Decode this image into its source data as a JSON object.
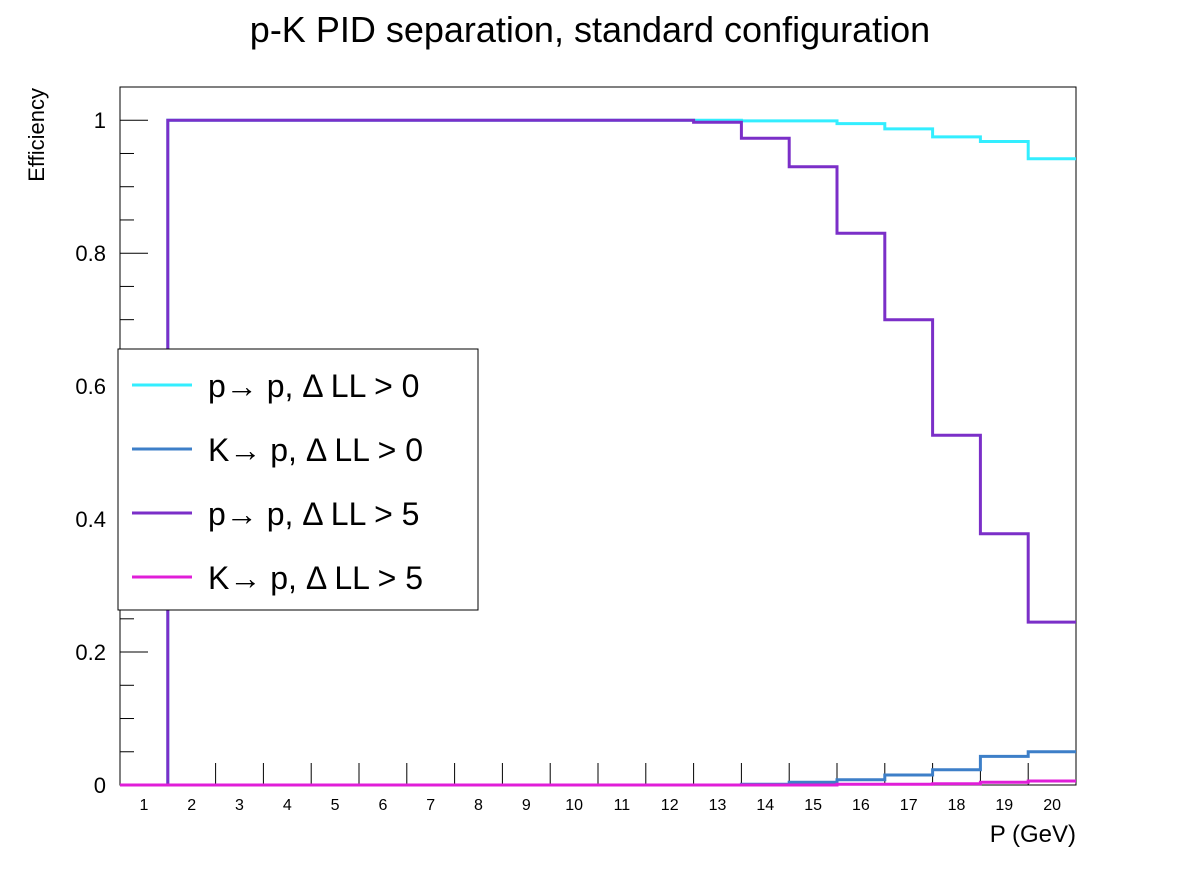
{
  "chart_data": {
    "type": "line",
    "title": "p-K PID separation, standard configuration",
    "xlabel": "P (GeV)",
    "ylabel": "Efficiency",
    "xlim": [
      0.5,
      20.5
    ],
    "ylim": [
      0,
      1.05
    ],
    "x": [
      1,
      2,
      3,
      4,
      5,
      6,
      7,
      8,
      9,
      10,
      11,
      12,
      13,
      14,
      15,
      16,
      17,
      18,
      19,
      20
    ],
    "x_tick_labels": [
      "1",
      "2",
      "3",
      "4",
      "5",
      "6",
      "7",
      "8",
      "9",
      "10",
      "11",
      "12",
      "13",
      "14",
      "15",
      "16",
      "17",
      "18",
      "19",
      "20"
    ],
    "y_tick_labels": [
      "0",
      "0.2",
      "0.4",
      "0.6",
      "0.8",
      "1"
    ],
    "y_ticks": [
      0,
      0.2,
      0.4,
      0.6,
      0.8,
      1
    ],
    "grid": false,
    "legend_position": "left",
    "series": [
      {
        "name": "p→ p, Δ LL > 0",
        "color": "#33eeff",
        "values": [
          0,
          1,
          1,
          1,
          1,
          1,
          1,
          1,
          1,
          1,
          1,
          1,
          1.0,
          0.999,
          0.999,
          0.995,
          0.987,
          0.975,
          0.968,
          0.942
        ]
      },
      {
        "name": "K→ p, Δ LL > 0",
        "color": "#3d7fc8",
        "values": [
          0,
          0,
          0,
          0,
          0,
          0,
          0,
          0,
          0,
          0,
          0,
          0,
          0,
          0.001,
          0.004,
          0.008,
          0.015,
          0.023,
          0.043,
          0.05
        ]
      },
      {
        "name": "p→ p, Δ LL > 5",
        "color": "#7b2fc8",
        "values": [
          0,
          1,
          1,
          1,
          1,
          1,
          1,
          1,
          1,
          1,
          1,
          1,
          0.997,
          0.973,
          0.93,
          0.83,
          0.7,
          0.526,
          0.378,
          0.245
        ]
      },
      {
        "name": "K→ p, Δ LL > 5",
        "color": "#e01ed8",
        "values": [
          0,
          0,
          0,
          0,
          0,
          0,
          0,
          0,
          0,
          0,
          0,
          0,
          0,
          0,
          0,
          0.001,
          0.001,
          0.002,
          0.004,
          0.006
        ]
      }
    ]
  }
}
